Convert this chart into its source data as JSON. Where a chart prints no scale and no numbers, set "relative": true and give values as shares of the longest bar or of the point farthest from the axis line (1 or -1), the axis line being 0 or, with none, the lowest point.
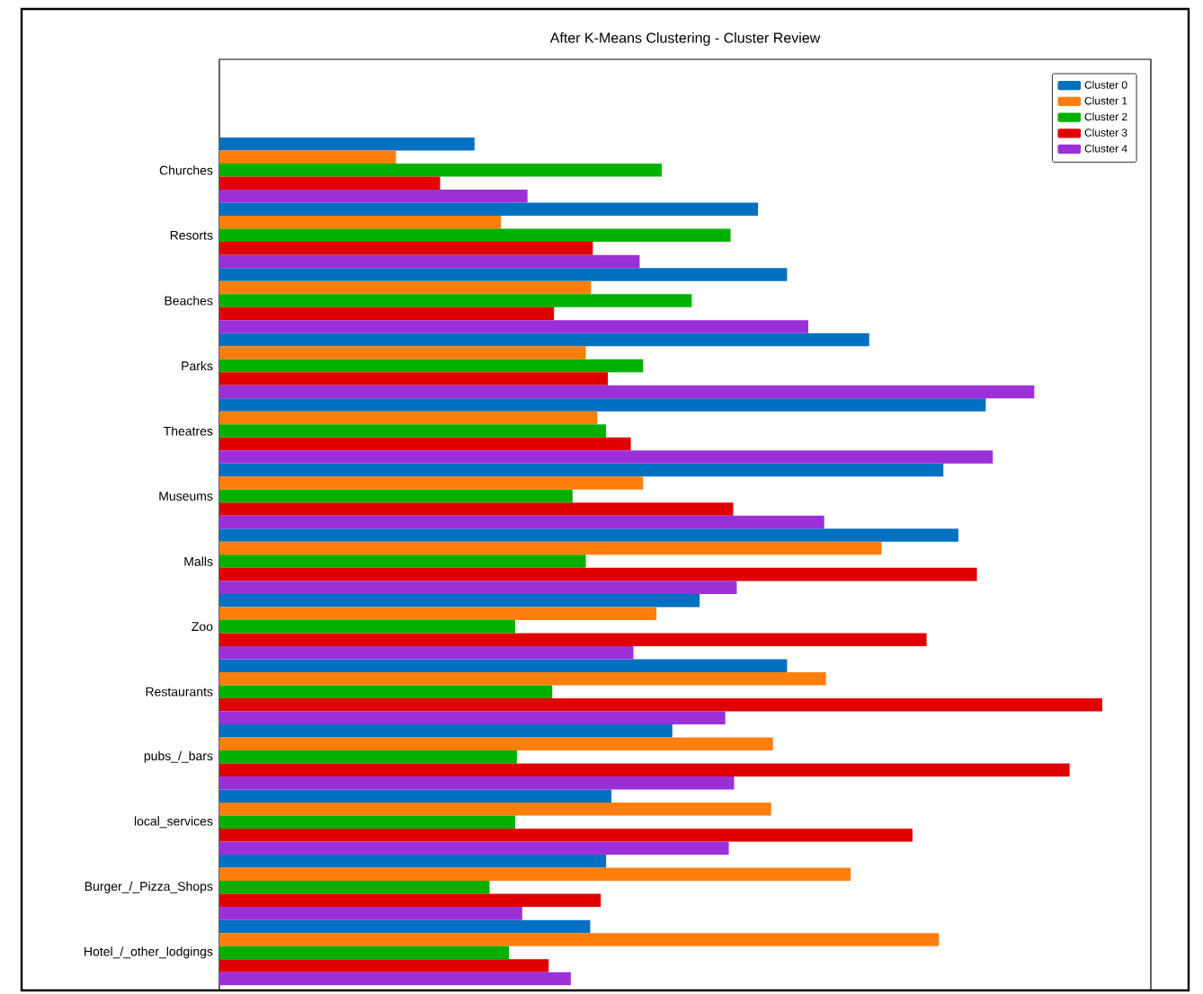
{
  "chart_data": {
    "type": "bar",
    "orientation": "horizontal",
    "relative": true,
    "title": "After K-Means Clustering - Cluster Review",
    "categories": [
      "Churches",
      "Resorts",
      "Beaches",
      "Parks",
      "Theatres",
      "Museums",
      "Malls",
      "Zoo",
      "Restaurants",
      "pubs_/_bars",
      "local_services",
      "Burger_/_Pizza_Shops",
      "Hotel_/_other_lodgings"
    ],
    "series": [
      {
        "name": "Cluster 0",
        "color": "#0070c0",
        "values": [
          0.289,
          0.61,
          0.643,
          0.736,
          0.868,
          0.82,
          0.837,
          0.544,
          0.643,
          0.513,
          0.444,
          0.438,
          0.42
        ]
      },
      {
        "name": "Cluster 1",
        "color": "#ff7f0e",
        "values": [
          0.2,
          0.319,
          0.421,
          0.415,
          0.428,
          0.48,
          0.75,
          0.495,
          0.687,
          0.627,
          0.625,
          0.715,
          0.815
        ]
      },
      {
        "name": "Cluster 2",
        "color": "#00b000",
        "values": [
          0.501,
          0.579,
          0.535,
          0.48,
          0.438,
          0.4,
          0.415,
          0.335,
          0.377,
          0.337,
          0.335,
          0.306,
          0.328
        ]
      },
      {
        "name": "Cluster 3",
        "color": "#e00000",
        "values": [
          0.25,
          0.423,
          0.379,
          0.44,
          0.466,
          0.582,
          0.858,
          0.801,
          1.0,
          0.963,
          0.785,
          0.432,
          0.373
        ]
      },
      {
        "name": "Cluster 4",
        "color": "#9b30d9",
        "values": [
          0.349,
          0.476,
          0.667,
          0.923,
          0.876,
          0.685,
          0.586,
          0.469,
          0.573,
          0.583,
          0.577,
          0.343,
          0.398
        ]
      }
    ],
    "legend": "top right"
  }
}
